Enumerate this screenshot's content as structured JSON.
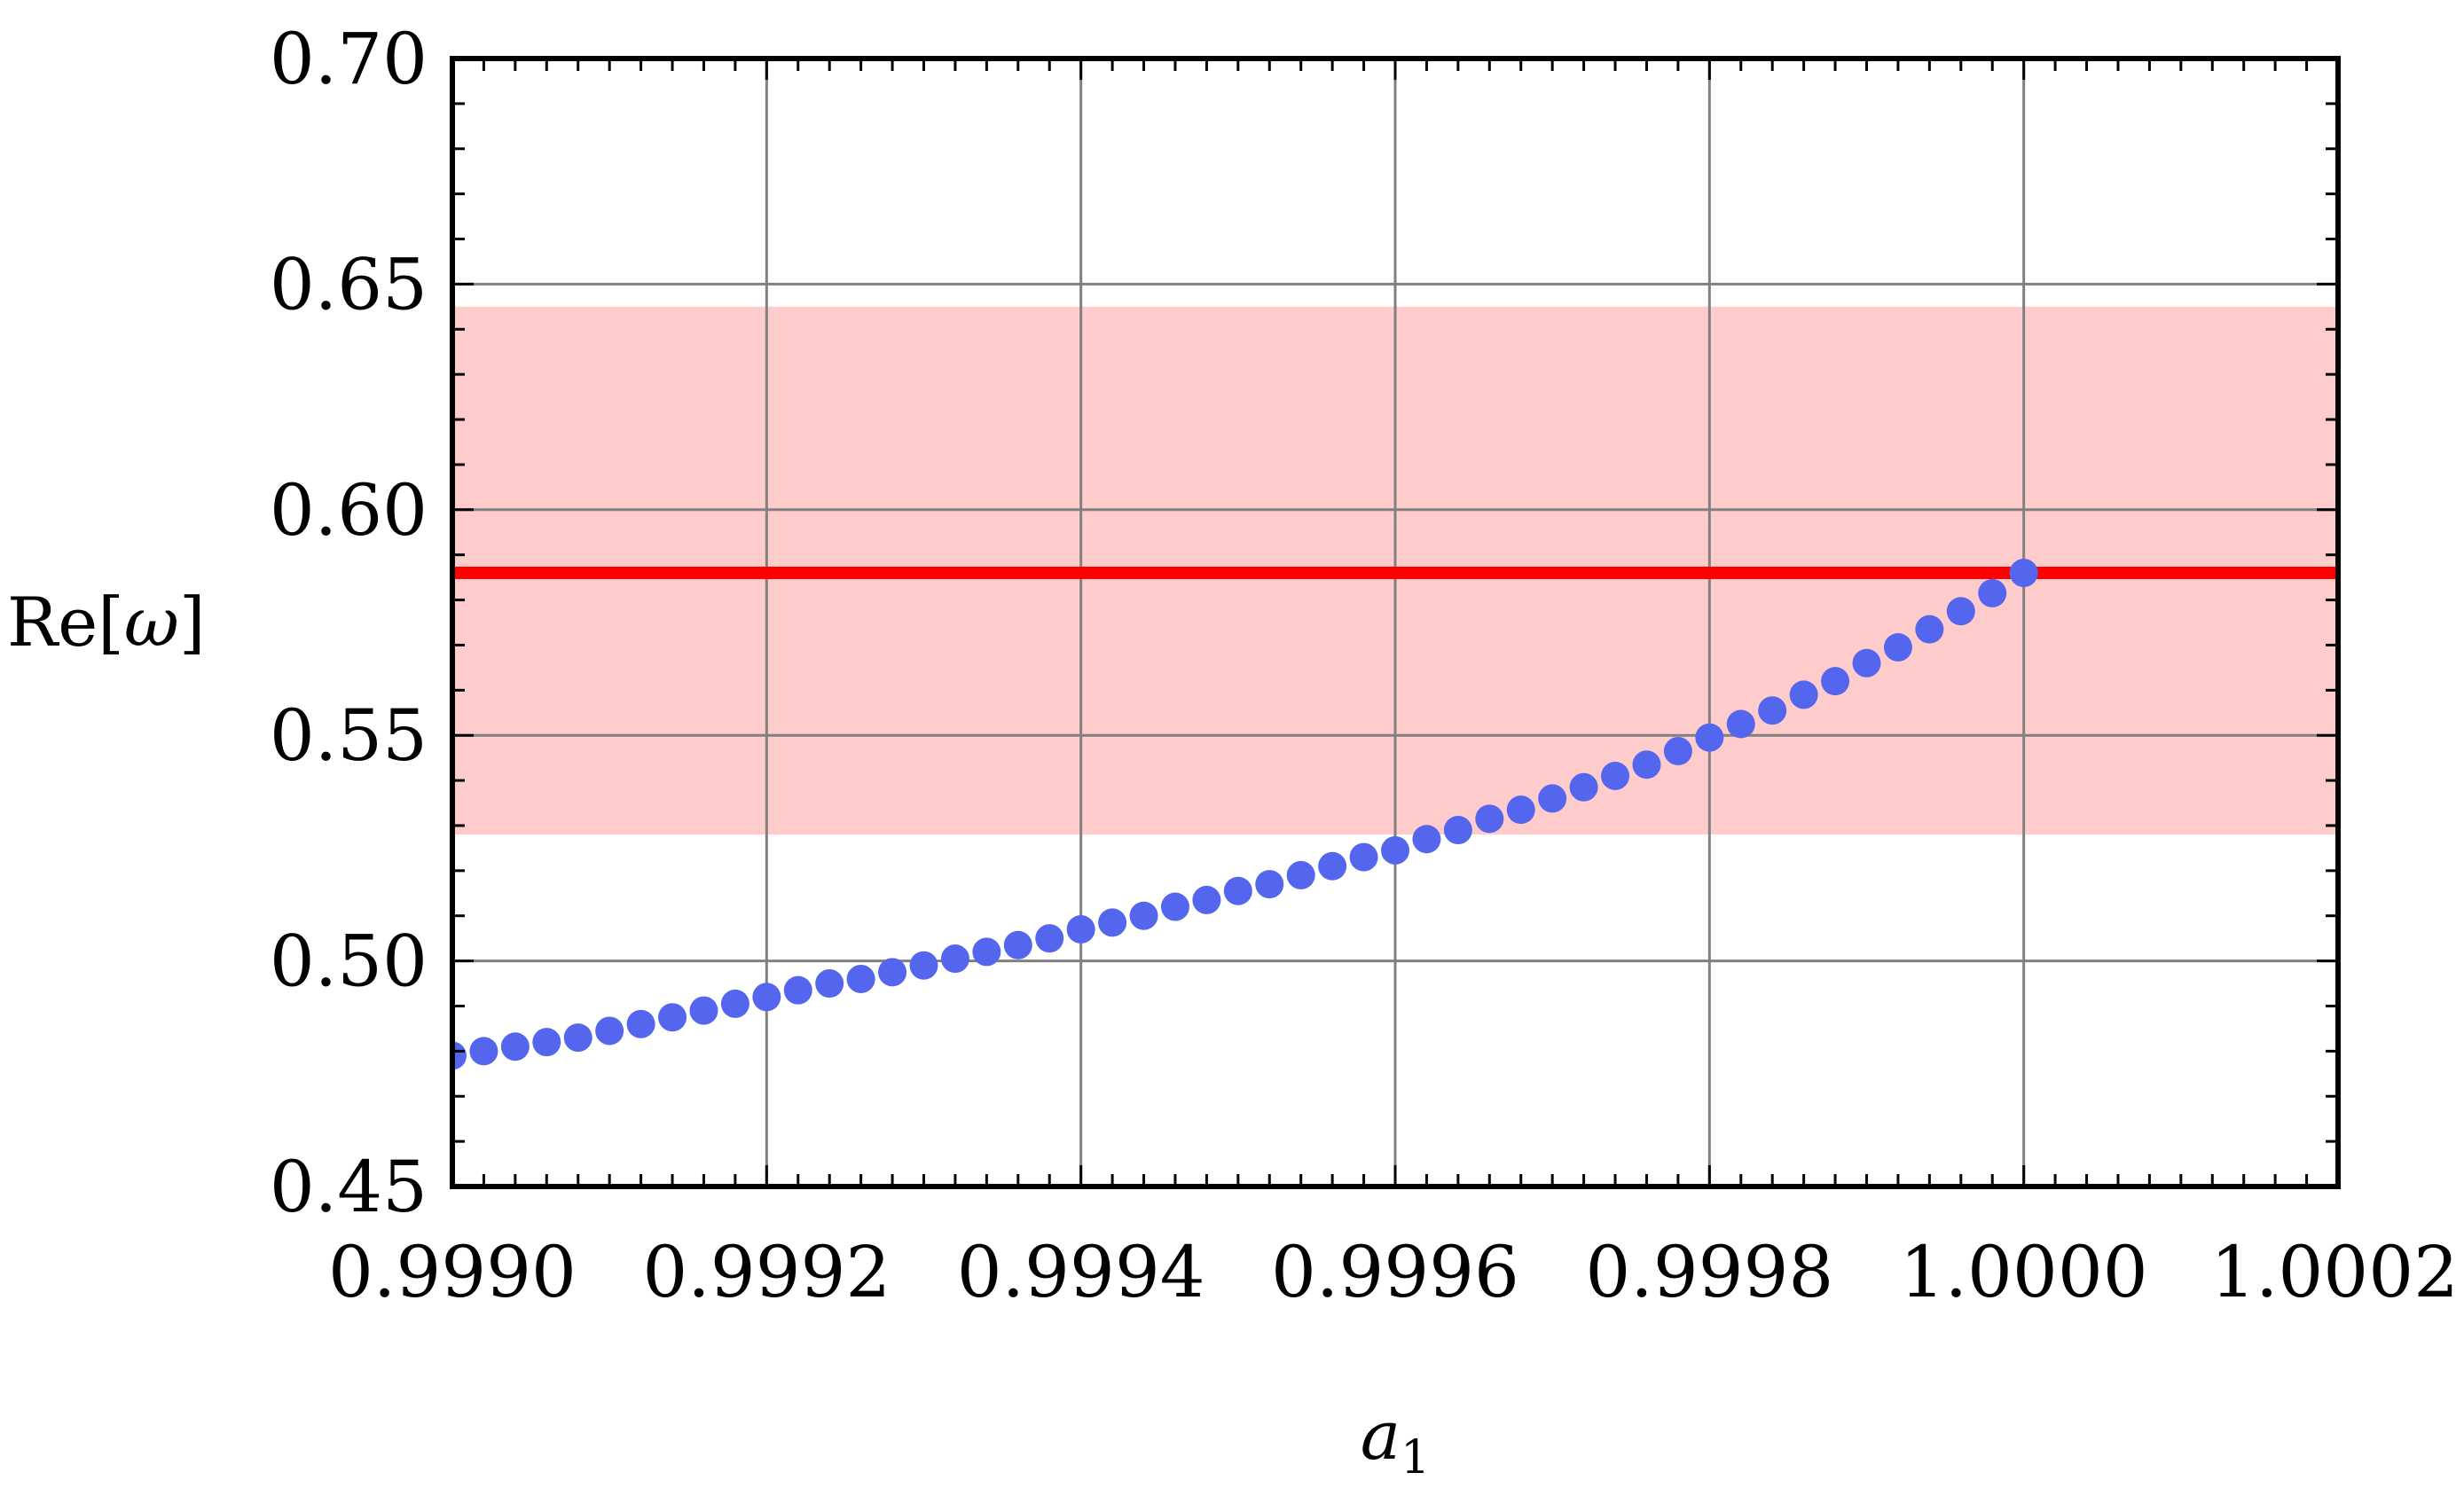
{
  "chart_data": {
    "type": "scatter",
    "title": "",
    "xlabel": "a",
    "xlabel_sub": "1",
    "ylabel_prefix": "Re[",
    "ylabel_symbol": "ω",
    "ylabel_suffix": "]",
    "xlim": [
      0.999,
      1.0002
    ],
    "ylim": [
      0.45,
      0.7
    ],
    "grid": true,
    "x_ticks": [
      "0.9990",
      "0.9992",
      "0.9994",
      "0.9996",
      "0.9998",
      "1.0000",
      "1.0002"
    ],
    "x_tick_values": [
      0.999,
      0.9992,
      0.9994,
      0.9996,
      0.9998,
      1.0,
      1.0002
    ],
    "y_ticks": [
      "0.45",
      "0.50",
      "0.55",
      "0.60",
      "0.65",
      "0.70"
    ],
    "y_tick_values": [
      0.45,
      0.5,
      0.55,
      0.6,
      0.65,
      0.7
    ],
    "reference_line": {
      "y": 0.586,
      "color": "#ff0000"
    },
    "reference_band": {
      "y_min": 0.528,
      "y_max": 0.645,
      "color": "#ffcccc"
    },
    "series": [
      {
        "color": "#5566ee",
        "points": [
          [
            0.999,
            0.479
          ],
          [
            0.99902,
            0.48
          ],
          [
            0.99904,
            0.481
          ],
          [
            0.99906,
            0.482
          ],
          [
            0.99908,
            0.483
          ],
          [
            0.9991,
            0.4845
          ],
          [
            0.99912,
            0.486
          ],
          [
            0.99914,
            0.4875
          ],
          [
            0.99916,
            0.489
          ],
          [
            0.99918,
            0.4905
          ],
          [
            0.9992,
            0.492
          ],
          [
            0.99922,
            0.4935
          ],
          [
            0.99924,
            0.495
          ],
          [
            0.99926,
            0.496
          ],
          [
            0.99928,
            0.4975
          ],
          [
            0.9993,
            0.499
          ],
          [
            0.99932,
            0.5005
          ],
          [
            0.99934,
            0.502
          ],
          [
            0.99936,
            0.5035
          ],
          [
            0.99938,
            0.505
          ],
          [
            0.9994,
            0.507
          ],
          [
            0.99942,
            0.5085
          ],
          [
            0.99944,
            0.51
          ],
          [
            0.99946,
            0.512
          ],
          [
            0.99948,
            0.5135
          ],
          [
            0.9995,
            0.5155
          ],
          [
            0.99952,
            0.517
          ],
          [
            0.99954,
            0.519
          ],
          [
            0.99956,
            0.521
          ],
          [
            0.99958,
            0.523
          ],
          [
            0.9996,
            0.5245
          ],
          [
            0.99962,
            0.527
          ],
          [
            0.99964,
            0.529
          ],
          [
            0.99966,
            0.5315
          ],
          [
            0.99968,
            0.5335
          ],
          [
            0.9997,
            0.536
          ],
          [
            0.99972,
            0.5385
          ],
          [
            0.99974,
            0.541
          ],
          [
            0.99976,
            0.5435
          ],
          [
            0.99978,
            0.5465
          ],
          [
            0.9998,
            0.5495
          ],
          [
            0.99982,
            0.5525
          ],
          [
            0.99984,
            0.5555
          ],
          [
            0.99986,
            0.559
          ],
          [
            0.99988,
            0.562
          ],
          [
            0.9999,
            0.566
          ],
          [
            0.99992,
            0.5695
          ],
          [
            0.99994,
            0.5735
          ],
          [
            0.99996,
            0.5775
          ],
          [
            0.99998,
            0.5815
          ],
          [
            1.0,
            0.586
          ]
        ]
      }
    ]
  }
}
